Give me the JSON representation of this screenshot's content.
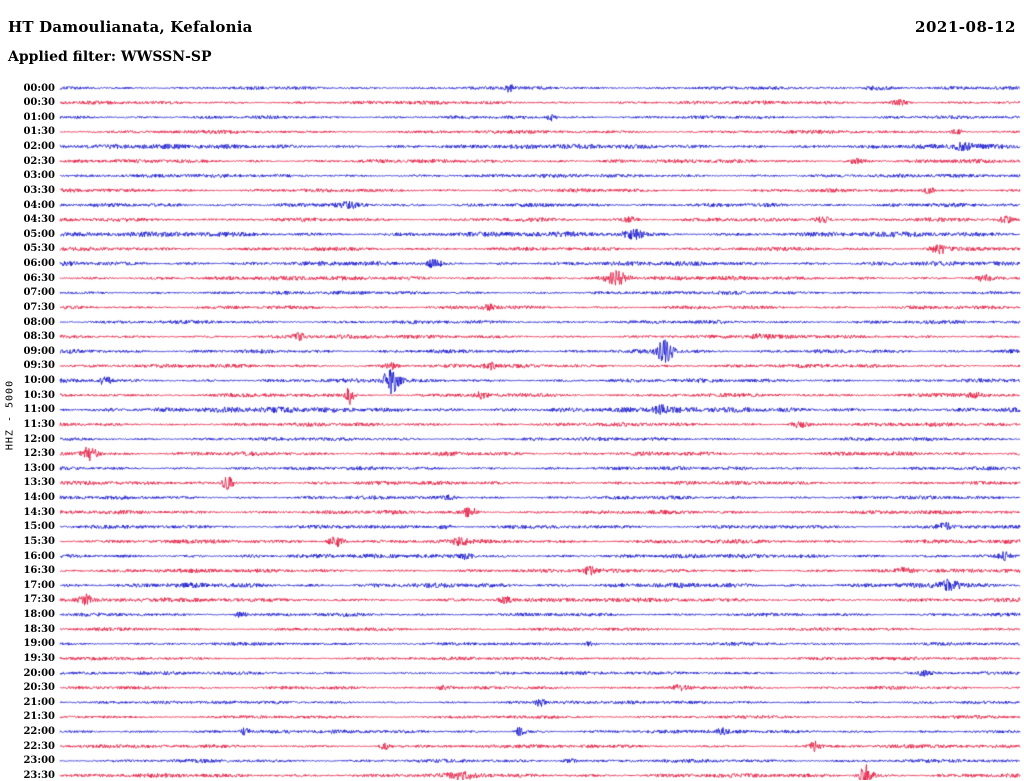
{
  "header": {
    "station": "HT Damoulianata, Kefalonia",
    "date": "2021-08-12",
    "filter": "Applied filter: WWSSN-SP"
  },
  "axis": {
    "left_label": "HHZ - 5000"
  },
  "chart_data": {
    "type": "line",
    "title": "HT Damoulianata, Kefalonia",
    "subtitle": "Applied filter: WWSSN-SP",
    "date": "2021-08-12",
    "layout": {
      "rows_per_day": 48,
      "minutes_per_row": 30,
      "grid": false,
      "legend": "none"
    },
    "palette": {
      "blue": "#1414cd",
      "red": "#e3163e"
    },
    "rows": [
      {
        "label": "00:00",
        "color": "blue",
        "base": 1.1,
        "events": [
          [
            0.468,
            2.5,
            0.003
          ],
          [
            0.85,
            1.5,
            0.01
          ]
        ]
      },
      {
        "label": "00:30",
        "color": "red",
        "base": 1.2,
        "events": [
          [
            0.875,
            1.8,
            0.006
          ]
        ]
      },
      {
        "label": "01:00",
        "color": "blue",
        "base": 1.1,
        "events": [
          [
            0.512,
            3.2,
            0.003
          ]
        ]
      },
      {
        "label": "01:30",
        "color": "red",
        "base": 1.2,
        "events": [
          [
            0.935,
            2.2,
            0.005
          ]
        ]
      },
      {
        "label": "02:00",
        "color": "blue",
        "base": 1.6,
        "events": [
          [
            0.94,
            2.0,
            0.008
          ]
        ]
      },
      {
        "label": "02:30",
        "color": "red",
        "base": 1.3,
        "events": [
          [
            0.83,
            1.6,
            0.006
          ]
        ]
      },
      {
        "label": "03:00",
        "color": "blue",
        "base": 1.2,
        "events": []
      },
      {
        "label": "03:30",
        "color": "red",
        "base": 1.2,
        "events": [
          [
            0.905,
            2.2,
            0.005
          ]
        ]
      },
      {
        "label": "04:00",
        "color": "blue",
        "base": 1.3,
        "events": [
          [
            0.3,
            1.6,
            0.008
          ]
        ]
      },
      {
        "label": "04:30",
        "color": "red",
        "base": 1.3,
        "events": [
          [
            0.593,
            2.0,
            0.006
          ],
          [
            0.795,
            2.2,
            0.007
          ],
          [
            0.985,
            2.0,
            0.005
          ]
        ]
      },
      {
        "label": "05:00",
        "color": "blue",
        "base": 1.7,
        "events": [
          [
            0.598,
            2.8,
            0.008
          ]
        ]
      },
      {
        "label": "05:30",
        "color": "red",
        "base": 1.3,
        "events": [
          [
            0.916,
            3.0,
            0.007
          ]
        ]
      },
      {
        "label": "06:00",
        "color": "blue",
        "base": 1.5,
        "events": [
          [
            0.39,
            2.8,
            0.005
          ]
        ]
      },
      {
        "label": "06:30",
        "color": "red",
        "base": 1.4,
        "events": [
          [
            0.58,
            4.5,
            0.008
          ],
          [
            0.963,
            2.2,
            0.005
          ]
        ]
      },
      {
        "label": "07:00",
        "color": "blue",
        "base": 1.2,
        "events": []
      },
      {
        "label": "07:30",
        "color": "red",
        "base": 1.2,
        "events": [
          [
            0.447,
            1.8,
            0.005
          ]
        ]
      },
      {
        "label": "08:00",
        "color": "blue",
        "base": 1.2,
        "events": []
      },
      {
        "label": "08:30",
        "color": "red",
        "base": 1.3,
        "events": [
          [
            0.25,
            2.4,
            0.005
          ],
          [
            0.73,
            1.6,
            0.006
          ]
        ]
      },
      {
        "label": "09:00",
        "color": "blue",
        "base": 1.3,
        "events": [
          [
            0.63,
            8.0,
            0.006
          ]
        ]
      },
      {
        "label": "09:30",
        "color": "red",
        "base": 1.3,
        "events": [
          [
            0.345,
            2.2,
            0.005
          ],
          [
            0.448,
            2.0,
            0.005
          ]
        ]
      },
      {
        "label": "10:00",
        "color": "blue",
        "base": 1.3,
        "events": [
          [
            0.047,
            3.5,
            0.004
          ],
          [
            0.345,
            9.0,
            0.006
          ]
        ]
      },
      {
        "label": "10:30",
        "color": "red",
        "base": 1.3,
        "events": [
          [
            0.302,
            6.0,
            0.003
          ],
          [
            0.438,
            2.2,
            0.005
          ],
          [
            0.953,
            2.0,
            0.005
          ]
        ]
      },
      {
        "label": "11:00",
        "color": "blue",
        "base": 1.9,
        "events": [
          [
            0.625,
            2.2,
            0.006
          ]
        ]
      },
      {
        "label": "11:30",
        "color": "red",
        "base": 1.3,
        "events": [
          [
            0.77,
            2.4,
            0.006
          ]
        ]
      },
      {
        "label": "12:00",
        "color": "blue",
        "base": 1.2,
        "events": []
      },
      {
        "label": "12:30",
        "color": "red",
        "base": 1.4,
        "events": [
          [
            0.031,
            5.0,
            0.006
          ]
        ]
      },
      {
        "label": "13:00",
        "color": "blue",
        "base": 1.2,
        "events": []
      },
      {
        "label": "13:30",
        "color": "red",
        "base": 1.3,
        "events": [
          [
            0.175,
            5.5,
            0.004
          ]
        ]
      },
      {
        "label": "14:00",
        "color": "blue",
        "base": 1.2,
        "events": [
          [
            0.406,
            1.8,
            0.005
          ]
        ]
      },
      {
        "label": "14:30",
        "color": "red",
        "base": 1.3,
        "events": [
          [
            0.427,
            5.0,
            0.004
          ]
        ]
      },
      {
        "label": "15:00",
        "color": "blue",
        "base": 1.3,
        "events": [
          [
            0.401,
            2.2,
            0.005
          ],
          [
            0.922,
            2.4,
            0.005
          ]
        ]
      },
      {
        "label": "15:30",
        "color": "red",
        "base": 1.4,
        "events": [
          [
            0.288,
            4.0,
            0.006
          ],
          [
            0.417,
            2.0,
            0.005
          ]
        ]
      },
      {
        "label": "16:00",
        "color": "blue",
        "base": 1.4,
        "events": [
          [
            0.422,
            2.2,
            0.006
          ],
          [
            0.984,
            2.4,
            0.004
          ]
        ]
      },
      {
        "label": "16:30",
        "color": "red",
        "base": 1.3,
        "events": [
          [
            0.552,
            3.2,
            0.004
          ],
          [
            0.88,
            2.0,
            0.006
          ]
        ]
      },
      {
        "label": "17:00",
        "color": "blue",
        "base": 1.6,
        "events": [
          [
            0.927,
            4.0,
            0.007
          ]
        ]
      },
      {
        "label": "17:30",
        "color": "red",
        "base": 1.4,
        "events": [
          [
            0.026,
            4.0,
            0.004
          ],
          [
            0.464,
            2.2,
            0.005
          ]
        ]
      },
      {
        "label": "18:00",
        "color": "blue",
        "base": 1.2,
        "events": [
          [
            0.188,
            2.0,
            0.004
          ]
        ]
      },
      {
        "label": "18:30",
        "color": "red",
        "base": 1.1,
        "events": []
      },
      {
        "label": "19:00",
        "color": "blue",
        "base": 1.1,
        "events": [
          [
            0.552,
            1.6,
            0.005
          ]
        ]
      },
      {
        "label": "19:30",
        "color": "red",
        "base": 1.1,
        "events": []
      },
      {
        "label": "20:00",
        "color": "blue",
        "base": 1.1,
        "events": [
          [
            0.901,
            1.8,
            0.005
          ]
        ]
      },
      {
        "label": "20:30",
        "color": "red",
        "base": 1.1,
        "events": [
          [
            0.401,
            1.8,
            0.005
          ],
          [
            0.646,
            1.8,
            0.005
          ]
        ]
      },
      {
        "label": "21:00",
        "color": "blue",
        "base": 1.1,
        "events": [
          [
            0.5,
            2.6,
            0.004
          ]
        ]
      },
      {
        "label": "21:30",
        "color": "red",
        "base": 1.1,
        "events": []
      },
      {
        "label": "22:00",
        "color": "blue",
        "base": 1.2,
        "events": [
          [
            0.193,
            2.4,
            0.004
          ],
          [
            0.479,
            3.0,
            0.004
          ],
          [
            0.688,
            1.8,
            0.005
          ]
        ]
      },
      {
        "label": "22:30",
        "color": "red",
        "base": 1.2,
        "events": [
          [
            0.339,
            2.6,
            0.004
          ],
          [
            0.786,
            3.0,
            0.004
          ]
        ]
      },
      {
        "label": "23:00",
        "color": "blue",
        "base": 1.2,
        "events": [
          [
            0.531,
            1.6,
            0.005
          ]
        ]
      },
      {
        "label": "23:30",
        "color": "red",
        "base": 1.4,
        "events": [
          [
            0.839,
            9.0,
            0.005
          ],
          [
            0.42,
            2.0,
            0.01
          ]
        ]
      }
    ]
  }
}
